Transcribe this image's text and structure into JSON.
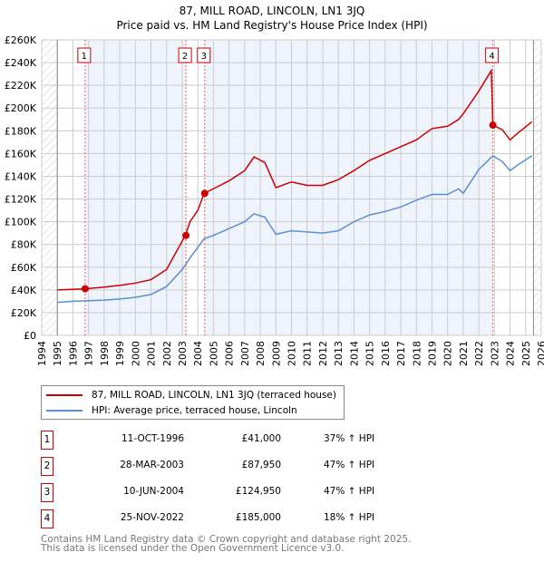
{
  "chart_data": {
    "type": "line",
    "title": "87, MILL ROAD, LINCOLN, LN1 3JQ",
    "subtitle": "Price paid vs. HM Land Registry's House Price Index (HPI)",
    "xlim": [
      1994,
      2026
    ],
    "ylim": [
      0,
      260000
    ],
    "yticks": [
      0,
      20000,
      40000,
      60000,
      80000,
      100000,
      120000,
      140000,
      160000,
      180000,
      200000,
      220000,
      240000,
      260000
    ],
    "ytick_labels": [
      "£0",
      "£20K",
      "£40K",
      "£60K",
      "£80K",
      "£100K",
      "£120K",
      "£140K",
      "£160K",
      "£180K",
      "£200K",
      "£220K",
      "£240K",
      "£260K"
    ],
    "xticks": [
      1994,
      1995,
      1996,
      1997,
      1998,
      1999,
      2000,
      2001,
      2002,
      2003,
      2004,
      2005,
      2006,
      2007,
      2008,
      2009,
      2010,
      2011,
      2012,
      2013,
      2014,
      2015,
      2016,
      2017,
      2018,
      2019,
      2020,
      2021,
      2022,
      2023,
      2024,
      2025,
      2026
    ],
    "grid": true,
    "series": [
      {
        "name": "87, MILL ROAD, LINCOLN, LN1 3JQ (terraced house)",
        "color": "#cc0000",
        "x": [
          1995,
          1996.8,
          1998,
          1999,
          2000,
          2001,
          2002,
          2003.2,
          2003.5,
          2004,
          2004.4,
          2005,
          2006,
          2007,
          2007.6,
          2008.3,
          2009,
          2010,
          2011,
          2012,
          2013,
          2014,
          2015,
          2016,
          2017,
          2018,
          2019,
          2020,
          2020.7,
          2021,
          2022,
          2022.8,
          2022.9,
          2023.5,
          2024,
          2024.5,
          2025.4
        ],
        "y": [
          40000,
          41000,
          42500,
          44000,
          46000,
          49000,
          58000,
          87950,
          100000,
          110000,
          124950,
          129000,
          136000,
          145000,
          157000,
          152000,
          130000,
          135000,
          132000,
          132000,
          137000,
          145000,
          154000,
          160000,
          166000,
          172000,
          182000,
          184000,
          190000,
          195000,
          215000,
          233000,
          185000,
          181000,
          172000,
          178000,
          188000
        ]
      },
      {
        "name": "HPI: Average price, terraced house, Lincoln",
        "color": "#5b8fd0",
        "x": [
          1995,
          1996,
          1997,
          1998,
          1999,
          2000,
          2001,
          2002,
          2003,
          2003.5,
          2004.4,
          2005,
          2006,
          2007,
          2007.6,
          2008.3,
          2009,
          2010,
          2011,
          2012,
          2013,
          2014,
          2015,
          2016,
          2017,
          2018,
          2019,
          2020,
          2020.7,
          2021,
          2022,
          2022.9,
          2023.5,
          2024,
          2024.5,
          2025.4
        ],
        "y": [
          29000,
          30000,
          30500,
          31000,
          32000,
          33500,
          36000,
          43000,
          58000,
          68000,
          85000,
          88000,
          94000,
          100000,
          107000,
          104000,
          89000,
          92000,
          91000,
          90000,
          92000,
          100000,
          106000,
          109000,
          113000,
          119000,
          124000,
          124000,
          129000,
          125000,
          146000,
          158000,
          153000,
          145000,
          150000,
          158000
        ]
      }
    ],
    "sales": [
      {
        "label": "1",
        "x": 1996.78,
        "price": 41000
      },
      {
        "label": "2",
        "x": 2003.24,
        "price": 87950
      },
      {
        "label": "3",
        "x": 2004.44,
        "price": 124950
      },
      {
        "label": "4",
        "x": 2022.9,
        "price": 185000
      }
    ]
  },
  "legend": {
    "property": "87, MILL ROAD, LINCOLN, LN1 3JQ (terraced house)",
    "hpi": "HPI: Average price, terraced house, Lincoln"
  },
  "transactions": [
    {
      "num": "1",
      "date": "11-OCT-1996",
      "price": "£41,000",
      "hpi": "37% ↑ HPI"
    },
    {
      "num": "2",
      "date": "28-MAR-2003",
      "price": "£87,950",
      "hpi": "47% ↑ HPI"
    },
    {
      "num": "3",
      "date": "10-JUN-2004",
      "price": "£124,950",
      "hpi": "47% ↑ HPI"
    },
    {
      "num": "4",
      "date": "25-NOV-2022",
      "price": "£185,000",
      "hpi": "18% ↑ HPI"
    }
  ],
  "footer": {
    "line1": "Contains HM Land Registry data © Crown copyright and database right 2025.",
    "line2": "This data is licensed under the Open Government Licence v3.0."
  }
}
